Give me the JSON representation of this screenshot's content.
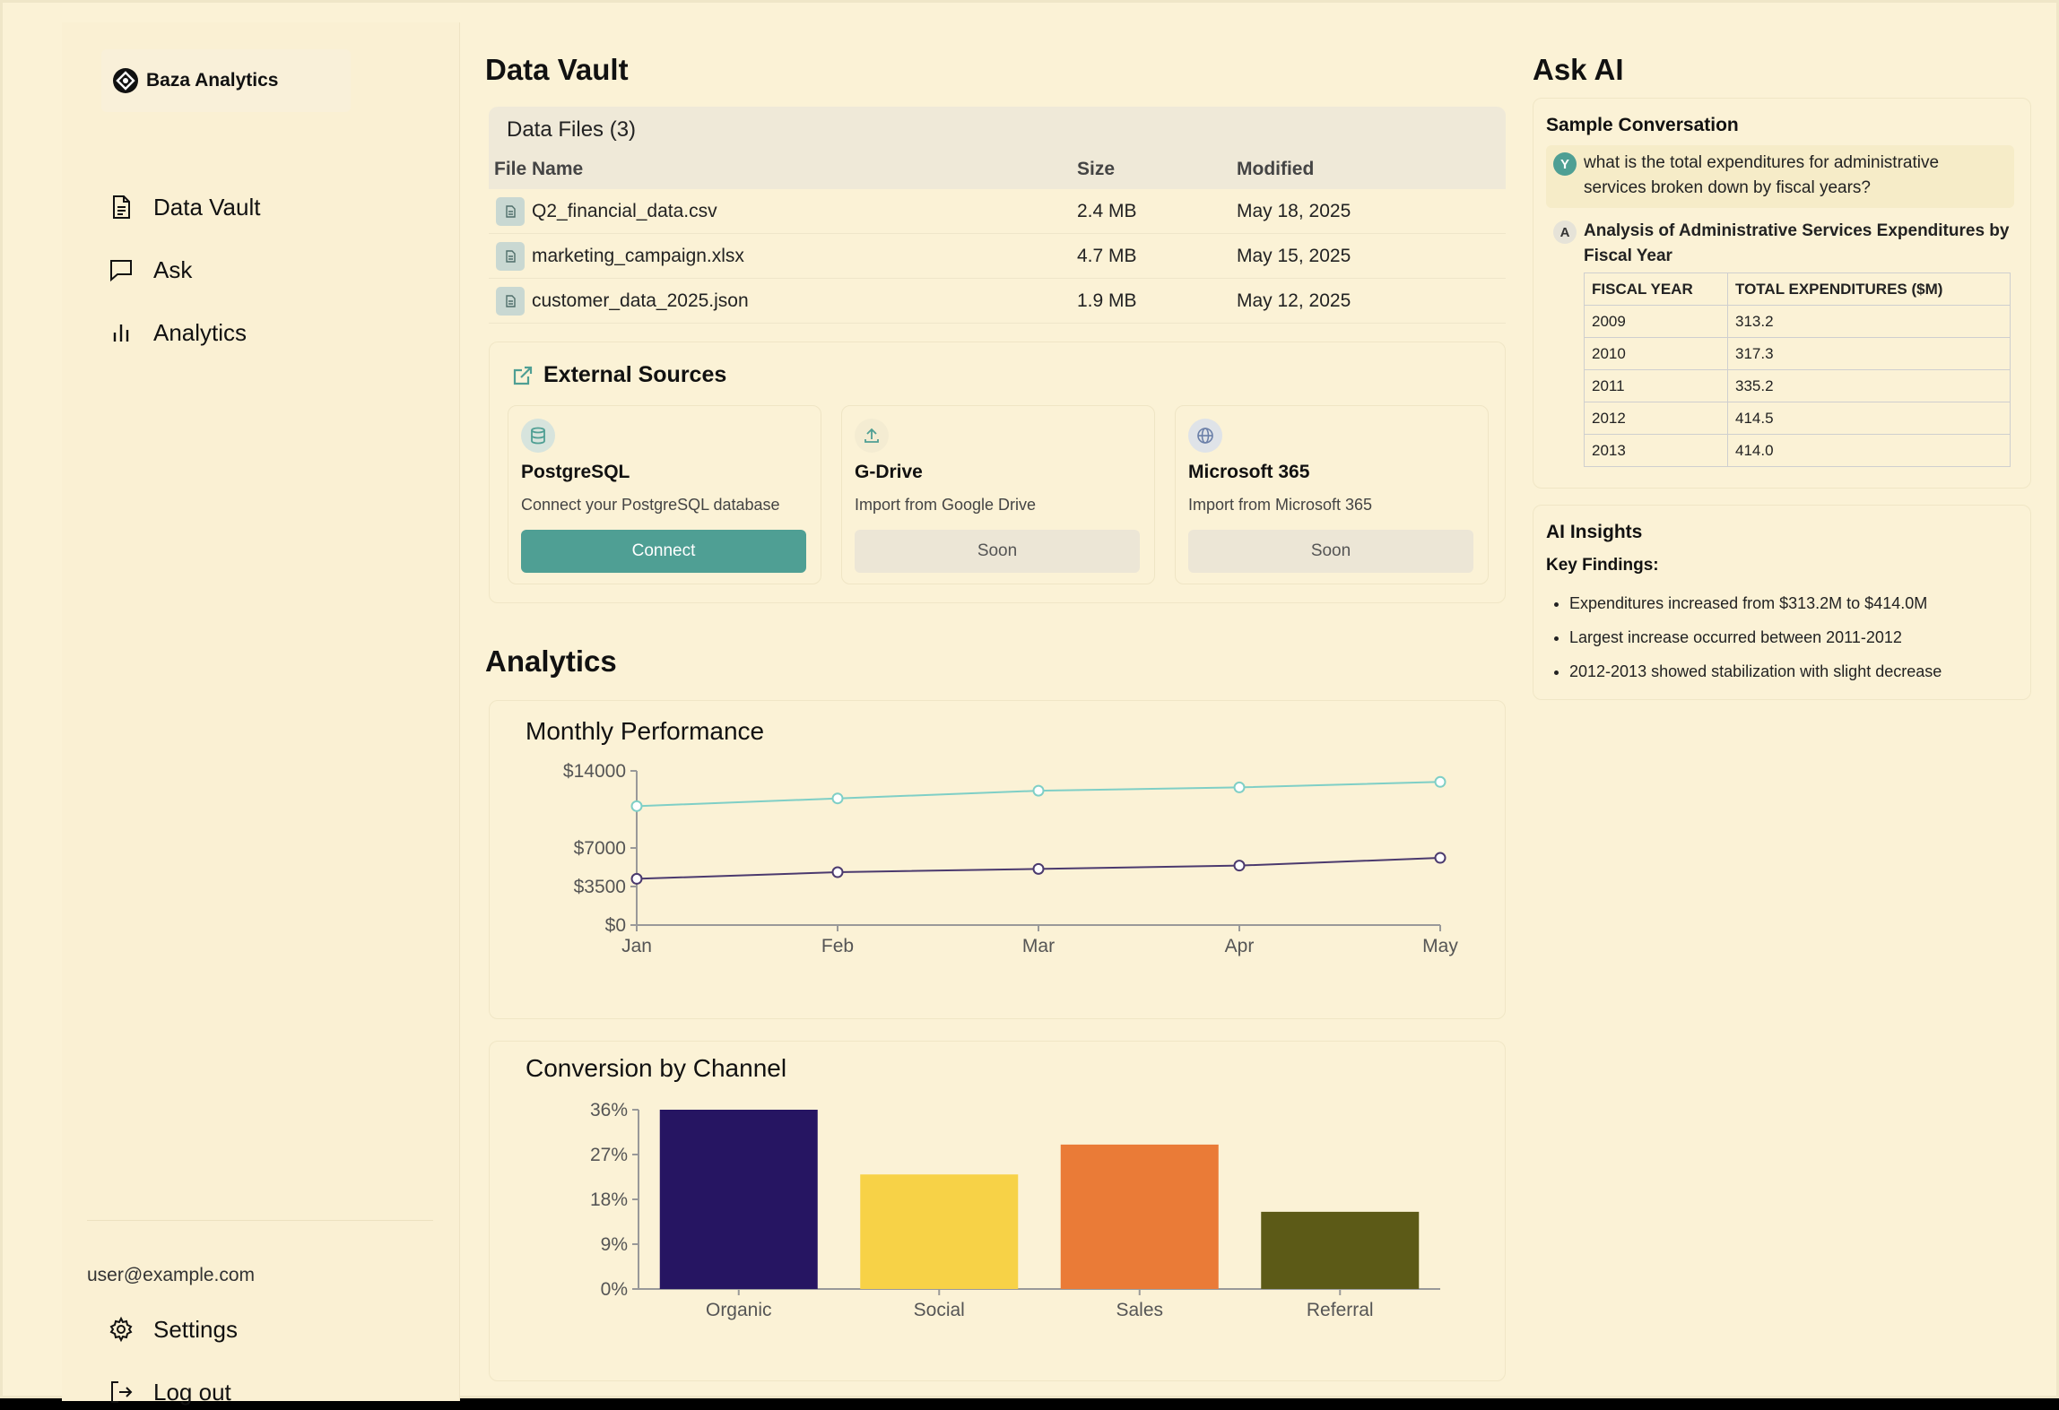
{
  "brand": "Baza Analytics",
  "nav": [
    {
      "label": "Data Vault",
      "icon": "document-icon"
    },
    {
      "label": "Ask",
      "icon": "chat-icon"
    },
    {
      "label": "Analytics",
      "icon": "bar-chart-icon"
    }
  ],
  "user": {
    "email": "user@example.com",
    "settings_label": "Settings",
    "logout_label": "Log out"
  },
  "data_vault": {
    "title": "Data Vault",
    "files_title": "Data Files (3)",
    "columns": [
      "File Name",
      "Size",
      "Modified"
    ],
    "files": [
      {
        "name": "Q2_financial_data.csv",
        "size": "2.4 MB",
        "modified": "May 18, 2025"
      },
      {
        "name": "marketing_campaign.xlsx",
        "size": "4.7 MB",
        "modified": "May 15, 2025"
      },
      {
        "name": "customer_data_2025.json",
        "size": "1.9 MB",
        "modified": "May 12, 2025"
      }
    ],
    "external_title": "External Sources",
    "sources": [
      {
        "name": "PostgreSQL",
        "desc": "Connect your PostgreSQL database",
        "button": "Connect",
        "icon": "database-icon"
      },
      {
        "name": "G-Drive",
        "desc": "Import from Google Drive",
        "button": "Soon",
        "icon": "upload-icon"
      },
      {
        "name": "Microsoft 365",
        "desc": "Import from Microsoft 365",
        "button": "Soon",
        "icon": "globe-icon"
      }
    ]
  },
  "analytics": {
    "title": "Analytics"
  },
  "chart_data": [
    {
      "type": "line",
      "title": "Monthly Performance",
      "x": [
        "Jan",
        "Feb",
        "Mar",
        "Apr",
        "May"
      ],
      "series": [
        {
          "values": [
            10800,
            11500,
            12200,
            12500,
            13000
          ],
          "color": "#7fcfc6"
        },
        {
          "values": [
            4200,
            4800,
            5100,
            5400,
            6100
          ],
          "color": "#4b3a6e"
        }
      ],
      "y_ticks": [
        "$0",
        "$3500",
        "$7000",
        "$14000"
      ],
      "ylim": [
        0,
        14000
      ],
      "grid": false
    },
    {
      "type": "bar",
      "title": "Conversion by Channel",
      "categories": [
        "Organic",
        "Social",
        "Sales",
        "Referral"
      ],
      "values": [
        36,
        23,
        29,
        15.5
      ],
      "colors": [
        "#261562",
        "#f7d247",
        "#ea7b37",
        "#5c5a17"
      ],
      "y_ticks": [
        "0%",
        "9%",
        "18%",
        "27%",
        "36%"
      ],
      "ylim": [
        0,
        36
      ],
      "grid": false
    }
  ],
  "ask_ai": {
    "title": "Ask AI",
    "conversation_title": "Sample Conversation",
    "user_avatar": "Y",
    "user_question": "what is the total expenditures for administrative services broken down by fiscal years?",
    "ai_avatar": "A",
    "ai_title": "Analysis of Administrative Services Expenditures by Fiscal Year",
    "table_headers": [
      "FISCAL YEAR",
      "TOTAL EXPENDITURES ($M)"
    ],
    "table_rows": [
      [
        "2009",
        "313.2"
      ],
      [
        "2010",
        "317.3"
      ],
      [
        "2011",
        "335.2"
      ],
      [
        "2012",
        "414.5"
      ],
      [
        "2013",
        "414.0"
      ]
    ],
    "insights_title": "AI Insights",
    "key_findings_label": "Key Findings:",
    "findings": [
      "Expenditures increased from $313.2M to $414.0M",
      "Largest increase occurred between 2011-2012",
      "2012-2013 showed stabilization with slight decrease"
    ]
  },
  "colors": {
    "background": "#fbf2d6",
    "accent": "#4f9f94"
  }
}
